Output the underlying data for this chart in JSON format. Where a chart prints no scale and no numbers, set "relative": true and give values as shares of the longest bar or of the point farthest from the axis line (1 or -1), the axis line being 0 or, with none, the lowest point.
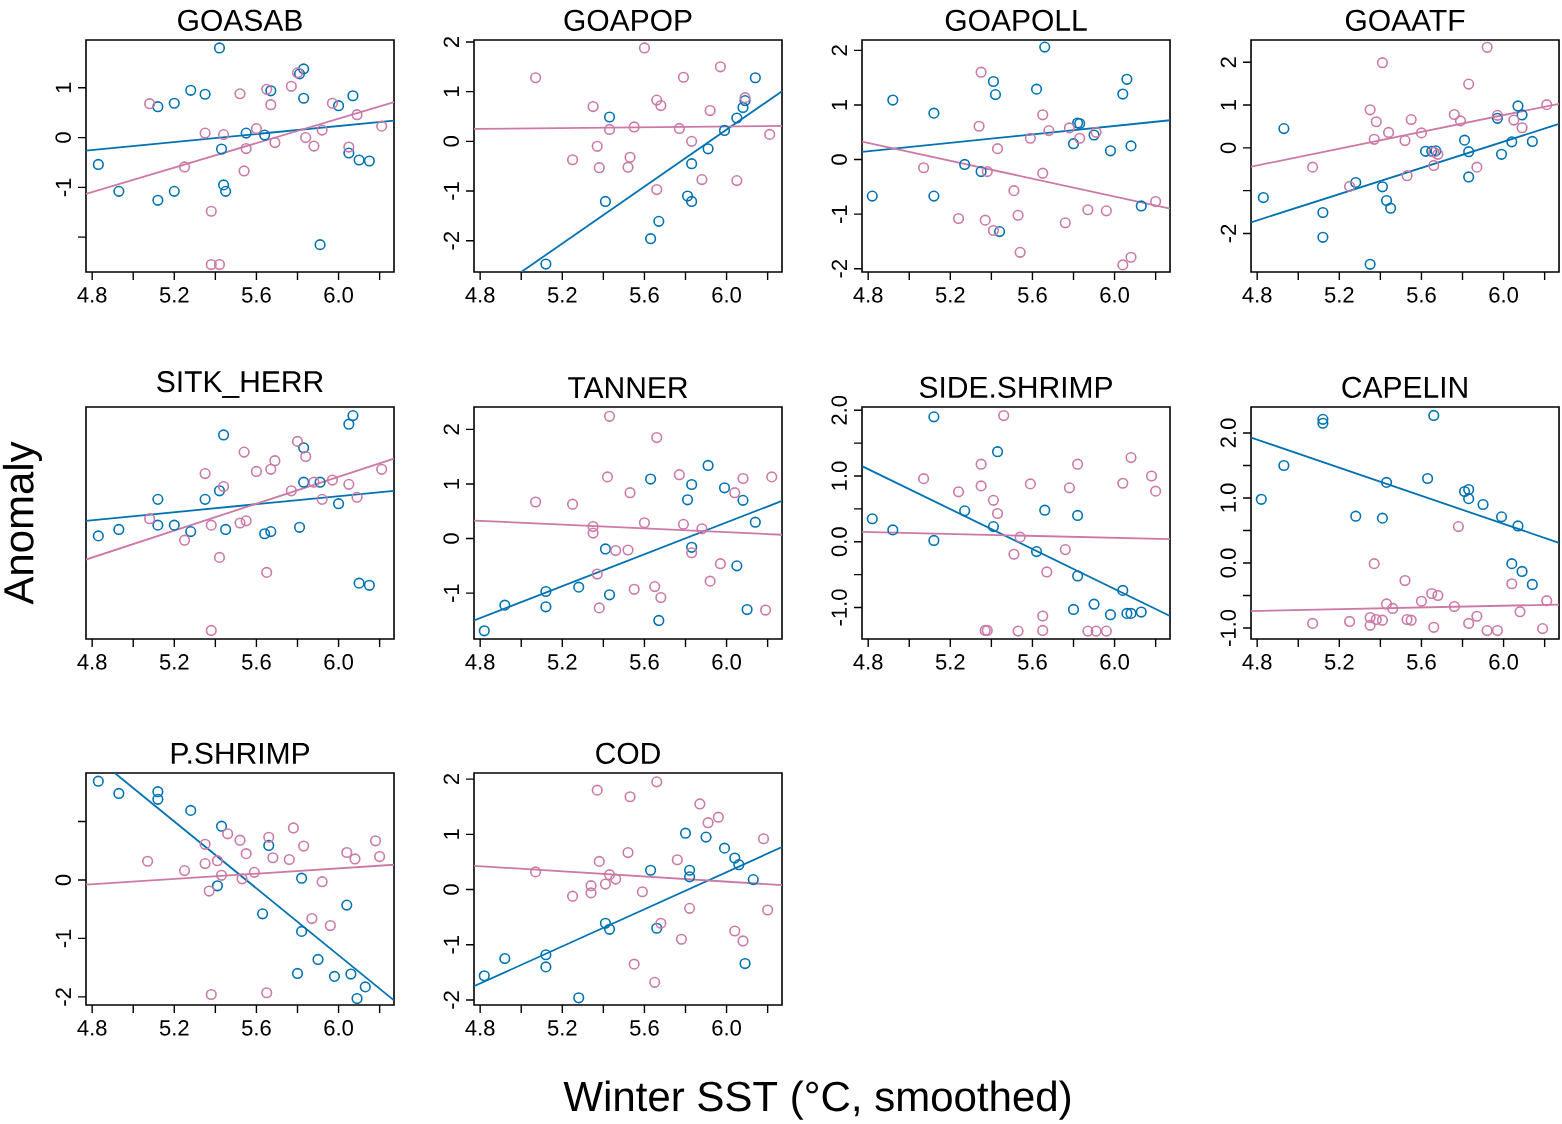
{
  "chart_data": [
    {
      "type": "scatter",
      "title": "GOASAB",
      "marker": "circle",
      "xlim": [
        4.77,
        6.27
      ],
      "ylim": [
        -2.7,
        1.96
      ],
      "xticks": [
        4.8,
        {
          "value": 5.0,
          "label": null
        },
        5.2,
        {
          "value": 5.4,
          "label": null
        },
        5.6,
        {
          "value": 5.8,
          "label": null
        },
        {
          "value": 6.0,
          "label": "6.0"
        },
        {
          "value": 6.2,
          "label": null
        }
      ],
      "yticks": [
        {
          "value": -2,
          "label": null
        },
        -1,
        0,
        1
      ],
      "series": [
        {
          "type": "scatter",
          "color": "#0072b2",
          "x": [
            4.83,
            4.93,
            5.12,
            5.12,
            5.2,
            5.2,
            5.28,
            5.35,
            5.42,
            5.43,
            5.44,
            5.45,
            5.55,
            5.64,
            5.67,
            5.81,
            5.83,
            5.83,
            5.91,
            6.0,
            6.05,
            6.07,
            6.1,
            6.15
          ],
          "values": [
            -0.54,
            -1.08,
            0.62,
            -1.26,
            0.69,
            -1.08,
            0.95,
            0.87,
            1.8,
            -0.23,
            -0.95,
            -1.08,
            0.09,
            0.05,
            0.94,
            1.28,
            1.38,
            0.79,
            -2.15,
            0.64,
            -0.31,
            0.84,
            -0.45,
            -0.47
          ]
        },
        {
          "type": "scatter",
          "color": "#cc79a7",
          "x": [
            5.08,
            5.25,
            5.35,
            5.38,
            5.38,
            5.42,
            5.44,
            5.52,
            5.54,
            5.55,
            5.6,
            5.65,
            5.67,
            5.69,
            5.77,
            5.8,
            5.84,
            5.88,
            5.92,
            5.97,
            6.05,
            6.09,
            6.21
          ],
          "values": [
            0.68,
            -0.59,
            0.09,
            -1.48,
            -2.55,
            -2.55,
            0.06,
            0.88,
            -0.67,
            -0.22,
            0.18,
            0.97,
            0.66,
            -0.1,
            1.03,
            1.3,
            0.0,
            -0.17,
            0.15,
            0.69,
            -0.19,
            0.46,
            0.23
          ]
        },
        {
          "type": "line",
          "color": "#0072b2",
          "x": [
            4.77,
            6.27
          ],
          "values": [
            -0.26,
            0.34
          ],
          "marker": "none"
        },
        {
          "type": "line",
          "color": "#cc79a7",
          "x": [
            4.77,
            6.27
          ],
          "values": [
            -1.13,
            0.71
          ],
          "marker": "none"
        }
      ]
    },
    {
      "type": "scatter",
      "title": "GOAPOP",
      "marker": "circle",
      "xlim": [
        4.77,
        6.27
      ],
      "ylim": [
        -2.63,
        2.04
      ],
      "xticks": [
        4.8,
        {
          "value": 5.0,
          "label": null
        },
        5.2,
        {
          "value": 5.4,
          "label": null
        },
        5.6,
        {
          "value": 5.8,
          "label": null
        },
        {
          "value": 6.0,
          "label": "6.0"
        },
        {
          "value": 6.2,
          "label": null
        }
      ],
      "yticks": [
        -2,
        -1,
        0,
        1,
        2
      ],
      "series": [
        {
          "type": "scatter",
          "color": "#0072b2",
          "x": [
            5.12,
            5.41,
            5.43,
            5.63,
            5.67,
            5.81,
            5.83,
            5.83,
            5.91,
            5.99,
            6.05,
            6.08,
            6.09,
            6.14
          ],
          "values": [
            -2.47,
            -1.21,
            0.49,
            -1.96,
            -1.61,
            -1.1,
            -0.45,
            -1.21,
            -0.15,
            0.22,
            0.47,
            0.68,
            0.82,
            1.28
          ]
        },
        {
          "type": "scatter",
          "color": "#cc79a7",
          "x": [
            5.07,
            5.25,
            5.35,
            5.37,
            5.38,
            5.43,
            5.52,
            5.53,
            5.55,
            5.6,
            5.66,
            5.66,
            5.68,
            5.77,
            5.79,
            5.83,
            5.88,
            5.92,
            5.97,
            6.05,
            6.09,
            6.21
          ],
          "values": [
            1.28,
            -0.37,
            0.7,
            -0.1,
            -0.53,
            0.24,
            -0.52,
            -0.32,
            0.29,
            1.88,
            -0.97,
            0.83,
            0.72,
            0.26,
            1.29,
            0.0,
            -0.77,
            0.62,
            1.5,
            -0.79,
            0.88,
            0.14
          ]
        },
        {
          "type": "line",
          "color": "#0072b2",
          "x": [
            5.0,
            6.27
          ],
          "values": [
            -2.63,
            1.01
          ],
          "marker": "none"
        },
        {
          "type": "line",
          "color": "#cc79a7",
          "x": [
            4.77,
            6.27
          ],
          "values": [
            0.25,
            0.31
          ],
          "marker": "none"
        }
      ]
    },
    {
      "type": "scatter",
      "title": "GOAPOLL",
      "marker": "circle",
      "xlim": [
        4.77,
        6.27
      ],
      "ylim": [
        -2.06,
        2.19
      ],
      "xticks": [
        4.8,
        {
          "value": 5.0,
          "label": null
        },
        5.2,
        {
          "value": 5.4,
          "label": null
        },
        5.6,
        {
          "value": 5.8,
          "label": null
        },
        {
          "value": 6.0,
          "label": "6.0"
        },
        {
          "value": 6.2,
          "label": null
        }
      ],
      "yticks": [
        -2,
        -1,
        0,
        1,
        2
      ],
      "series": [
        {
          "type": "scatter",
          "color": "#0072b2",
          "x": [
            4.82,
            4.92,
            5.12,
            5.12,
            5.27,
            5.35,
            5.41,
            5.42,
            5.44,
            5.62,
            5.66,
            5.8,
            5.82,
            5.83,
            5.9,
            5.98,
            6.04,
            6.06,
            6.08,
            6.13
          ],
          "values": [
            -0.67,
            1.09,
            0.85,
            -0.67,
            -0.09,
            -0.22,
            1.43,
            1.19,
            -1.32,
            1.29,
            2.06,
            0.29,
            0.67,
            0.66,
            0.45,
            0.16,
            1.2,
            1.47,
            0.25,
            -0.85
          ]
        },
        {
          "type": "scatter",
          "color": "#cc79a7",
          "x": [
            5.07,
            5.24,
            5.34,
            5.35,
            5.37,
            5.38,
            5.41,
            5.43,
            5.51,
            5.53,
            5.54,
            5.59,
            5.65,
            5.65,
            5.68,
            5.76,
            5.78,
            5.83,
            5.87,
            5.91,
            5.96,
            6.04,
            6.08,
            6.2
          ],
          "values": [
            -0.15,
            -1.08,
            0.61,
            1.6,
            -1.11,
            -0.22,
            -1.3,
            0.2,
            -0.57,
            -1.02,
            -1.7,
            0.39,
            0.82,
            -0.25,
            0.53,
            -1.16,
            0.58,
            0.39,
            -0.92,
            0.5,
            -0.94,
            -1.93,
            -1.79,
            -0.77
          ]
        },
        {
          "type": "line",
          "color": "#0072b2",
          "x": [
            4.77,
            6.27
          ],
          "values": [
            0.14,
            0.72
          ],
          "marker": "none"
        },
        {
          "type": "line",
          "color": "#cc79a7",
          "x": [
            4.77,
            6.27
          ],
          "values": [
            0.33,
            -0.9
          ],
          "marker": "none"
        }
      ]
    },
    {
      "type": "scatter",
      "title": "GOAATF",
      "marker": "circle",
      "xlim": [
        4.77,
        6.27
      ],
      "ylim": [
        -2.9,
        2.52
      ],
      "xticks": [
        4.8,
        {
          "value": 5.0,
          "label": null
        },
        5.2,
        {
          "value": 5.4,
          "label": null
        },
        5.6,
        {
          "value": 5.8,
          "label": null
        },
        {
          "value": 6.0,
          "label": "6.0"
        },
        {
          "value": 6.2,
          "label": null
        }
      ],
      "yticks": [
        -2,
        {
          "value": -1,
          "label": null
        },
        0,
        1,
        2
      ],
      "series": [
        {
          "type": "scatter",
          "color": "#0072b2",
          "x": [
            4.83,
            4.93,
            5.12,
            5.12,
            5.28,
            5.35,
            5.41,
            5.43,
            5.45,
            5.62,
            5.65,
            5.67,
            5.81,
            5.83,
            5.83,
            5.97,
            5.99,
            6.04,
            6.07,
            6.09,
            6.14
          ],
          "values": [
            -1.16,
            0.45,
            -1.51,
            -2.09,
            -0.81,
            -2.72,
            -0.91,
            -1.23,
            -1.41,
            -0.08,
            -0.08,
            -0.07,
            0.18,
            -0.09,
            -0.68,
            0.69,
            -0.15,
            0.14,
            0.98,
            0.77,
            0.15
          ]
        },
        {
          "type": "scatter",
          "color": "#cc79a7",
          "x": [
            5.07,
            5.25,
            5.35,
            5.37,
            5.38,
            5.41,
            5.44,
            5.52,
            5.53,
            5.55,
            5.6,
            5.66,
            5.66,
            5.68,
            5.76,
            5.79,
            5.83,
            5.87,
            5.92,
            5.97,
            6.05,
            6.09,
            6.21
          ],
          "values": [
            -0.45,
            -0.9,
            0.89,
            0.2,
            0.61,
            1.99,
            0.36,
            0.17,
            -0.65,
            0.66,
            0.35,
            -0.41,
            -0.1,
            -0.15,
            0.78,
            0.63,
            1.49,
            -0.45,
            2.35,
            0.76,
            0.65,
            0.47,
            1.01
          ]
        },
        {
          "type": "line",
          "color": "#0072b2",
          "x": [
            4.77,
            6.27
          ],
          "values": [
            -1.74,
            0.56
          ],
          "marker": "none"
        },
        {
          "type": "line",
          "color": "#cc79a7",
          "x": [
            4.77,
            6.27
          ],
          "values": [
            -0.44,
            1.03
          ],
          "marker": "none"
        }
      ]
    },
    {
      "type": "scatter",
      "title": "SITK_HERR",
      "ylabel": "Anomaly",
      "marker": "circle",
      "relative": true,
      "xlim": [
        4.77,
        6.27
      ],
      "xticks": [
        4.8,
        {
          "value": 5.0,
          "label": null
        },
        5.2,
        {
          "value": 5.4,
          "label": null
        },
        5.6,
        {
          "value": 5.8,
          "label": null
        },
        {
          "value": 6.0,
          "label": "6.0"
        },
        {
          "value": 6.2,
          "label": null
        }
      ],
      "series": [
        {
          "type": "scatter",
          "color": "#0072b2",
          "x": [
            4.83,
            4.93,
            5.12,
            5.12,
            5.2,
            5.28,
            5.35,
            5.42,
            5.44,
            5.45,
            5.64,
            5.67,
            5.81,
            5.83,
            5.83,
            5.91,
            6.0,
            6.05,
            6.07,
            6.1,
            6.15
          ],
          "values": [
            0.44,
            0.47,
            0.61,
            0.49,
            0.49,
            0.46,
            0.61,
            0.65,
            0.91,
            0.47,
            0.45,
            0.46,
            0.48,
            0.85,
            0.69,
            0.69,
            0.59,
            0.96,
            1.0,
            0.22,
            0.21
          ]
        },
        {
          "type": "scatter",
          "color": "#cc79a7",
          "x": [
            5.08,
            5.25,
            5.35,
            5.38,
            5.38,
            5.42,
            5.44,
            5.52,
            5.54,
            5.55,
            5.6,
            5.65,
            5.67,
            5.69,
            5.77,
            5.8,
            5.84,
            5.88,
            5.92,
            5.97,
            6.05,
            6.09,
            6.21
          ],
          "values": [
            0.52,
            0.42,
            0.73,
            0.49,
            0.0,
            0.34,
            0.67,
            0.5,
            0.83,
            0.51,
            0.74,
            0.27,
            0.75,
            0.79,
            0.65,
            0.88,
            0.81,
            0.69,
            0.61,
            0.7,
            0.68,
            0.62,
            0.75
          ]
        },
        {
          "type": "line",
          "color": "#0072b2",
          "x": [
            4.77,
            6.27
          ],
          "values": [
            0.51,
            0.65
          ],
          "marker": "none"
        },
        {
          "type": "line",
          "color": "#cc79a7",
          "x": [
            4.77,
            6.27
          ],
          "values": [
            0.33,
            0.8
          ],
          "marker": "none"
        }
      ]
    },
    {
      "type": "scatter",
      "title": "TANNER",
      "marker": "circle",
      "xlim": [
        4.77,
        6.27
      ],
      "ylim": [
        -1.84,
        2.41
      ],
      "xticks": [
        4.8,
        {
          "value": 5.0,
          "label": null
        },
        5.2,
        {
          "value": 5.4,
          "label": null
        },
        5.6,
        {
          "value": 5.8,
          "label": null
        },
        {
          "value": 6.0,
          "label": "6.0"
        },
        {
          "value": 6.2,
          "label": null
        }
      ],
      "yticks": [
        -1,
        0,
        1,
        2
      ],
      "series": [
        {
          "type": "scatter",
          "color": "#0072b2",
          "x": [
            4.82,
            4.92,
            5.12,
            5.12,
            5.28,
            5.41,
            5.43,
            5.63,
            5.67,
            5.81,
            5.83,
            5.83,
            5.91,
            5.99,
            6.05,
            6.08,
            6.1,
            6.14
          ],
          "values": [
            -1.69,
            -1.22,
            -0.97,
            -1.25,
            -0.89,
            -0.19,
            -1.03,
            1.09,
            -1.5,
            0.71,
            0.99,
            -0.16,
            1.34,
            0.93,
            -0.5,
            0.7,
            -1.3,
            0.3
          ]
        },
        {
          "type": "scatter",
          "color": "#cc79a7",
          "x": [
            5.07,
            5.25,
            5.35,
            5.35,
            5.37,
            5.38,
            5.42,
            5.43,
            5.46,
            5.52,
            5.53,
            5.55,
            5.6,
            5.65,
            5.66,
            5.68,
            5.77,
            5.79,
            5.83,
            5.88,
            5.92,
            5.97,
            6.04,
            6.08,
            6.19,
            6.22
          ],
          "values": [
            0.67,
            0.63,
            0.22,
            0.1,
            -0.65,
            -1.27,
            1.13,
            2.24,
            -0.22,
            -0.21,
            0.84,
            -0.93,
            0.29,
            -0.88,
            1.85,
            -1.08,
            1.17,
            0.26,
            -0.26,
            0.18,
            -0.78,
            -0.46,
            0.84,
            1.1,
            -1.31,
            1.13
          ]
        },
        {
          "type": "line",
          "color": "#0072b2",
          "x": [
            4.77,
            6.27
          ],
          "values": [
            -1.5,
            0.69
          ],
          "marker": "none"
        },
        {
          "type": "line",
          "color": "#cc79a7",
          "x": [
            4.77,
            6.27
          ],
          "values": [
            0.33,
            0.07
          ],
          "marker": "none"
        }
      ]
    },
    {
      "type": "scatter",
      "title": "SIDE.SHRIMP",
      "marker": "circle",
      "xlim": [
        4.77,
        6.27
      ],
      "ylim": [
        -1.48,
        2.05
      ],
      "xticks": [
        4.8,
        {
          "value": 5.0,
          "label": null
        },
        5.2,
        {
          "value": 5.4,
          "label": null
        },
        5.6,
        {
          "value": 5.8,
          "label": null
        },
        {
          "value": 6.0,
          "label": "6.0"
        },
        {
          "value": 6.2,
          "label": null
        }
      ],
      "yticks": [
        {
          "value": -1.0,
          "label": "-1.0"
        },
        {
          "value": -0.5,
          "label": null
        },
        {
          "value": 0.0,
          "label": "0.0"
        },
        {
          "value": 0.5,
          "label": null
        },
        {
          "value": 1.0,
          "label": "1.0"
        },
        {
          "value": 1.5,
          "label": null
        },
        {
          "value": 2.0,
          "label": "2.0"
        }
      ],
      "series": [
        {
          "type": "scatter",
          "color": "#0072b2",
          "x": [
            4.82,
            4.92,
            5.12,
            5.12,
            5.27,
            5.41,
            5.43,
            5.62,
            5.66,
            5.8,
            5.82,
            5.82,
            5.9,
            5.98,
            6.04,
            6.06,
            6.08,
            6.13
          ],
          "values": [
            0.35,
            0.18,
            0.02,
            1.9,
            0.47,
            0.23,
            1.37,
            -0.15,
            0.48,
            -1.03,
            0.4,
            -0.52,
            -0.95,
            -1.11,
            -0.74,
            -1.09,
            -1.09,
            -1.07
          ]
        },
        {
          "type": "scatter",
          "color": "#cc79a7",
          "x": [
            5.07,
            5.24,
            5.35,
            5.35,
            5.37,
            5.38,
            5.41,
            5.43,
            5.46,
            5.51,
            5.53,
            5.54,
            5.59,
            5.65,
            5.65,
            5.67,
            5.76,
            5.78,
            5.82,
            5.87,
            5.91,
            5.96,
            6.04,
            6.08,
            6.18,
            6.2
          ],
          "values": [
            0.96,
            0.76,
            0.85,
            1.18,
            -1.35,
            -1.35,
            0.63,
            0.43,
            1.92,
            -0.19,
            -1.36,
            0.07,
            0.88,
            -1.35,
            -1.13,
            -0.46,
            -0.12,
            0.82,
            1.18,
            -1.36,
            -1.36,
            -1.36,
            0.89,
            1.28,
            1.0,
            0.77
          ]
        },
        {
          "type": "line",
          "color": "#0072b2",
          "x": [
            4.77,
            6.27
          ],
          "values": [
            1.15,
            -1.13
          ],
          "marker": "none"
        },
        {
          "type": "line",
          "color": "#cc79a7",
          "x": [
            4.77,
            6.27
          ],
          "values": [
            0.15,
            0.04
          ],
          "marker": "none"
        }
      ]
    },
    {
      "type": "scatter",
      "title": "CAPELIN",
      "marker": "circle",
      "xlim": [
        4.77,
        6.27
      ],
      "ylim": [
        -1.17,
        2.4
      ],
      "xticks": [
        4.8,
        {
          "value": 5.0,
          "label": null
        },
        5.2,
        {
          "value": 5.4,
          "label": null
        },
        5.6,
        {
          "value": 5.8,
          "label": null
        },
        {
          "value": 6.0,
          "label": "6.0"
        },
        {
          "value": 6.2,
          "label": null
        }
      ],
      "yticks": [
        {
          "value": -1.0,
          "label": "-1.0"
        },
        {
          "value": -0.5,
          "label": null
        },
        {
          "value": 0.0,
          "label": "0.0"
        },
        {
          "value": 0.5,
          "label": null
        },
        {
          "value": 1.0,
          "label": "1.0"
        },
        {
          "value": 1.5,
          "label": null
        },
        {
          "value": 2.0,
          "label": "2.0"
        }
      ],
      "series": [
        {
          "type": "scatter",
          "color": "#0072b2",
          "x": [
            4.82,
            4.93,
            5.12,
            5.12,
            5.28,
            5.41,
            5.43,
            5.63,
            5.66,
            5.81,
            5.83,
            5.83,
            5.9,
            5.99,
            6.07,
            6.04,
            6.09,
            6.14
          ],
          "values": [
            0.98,
            1.5,
            2.21,
            2.15,
            0.72,
            0.69,
            1.24,
            1.3,
            2.27,
            1.1,
            1.13,
            0.99,
            0.9,
            0.71,
            0.57,
            -0.01,
            -0.13,
            -0.33
          ]
        },
        {
          "type": "scatter",
          "color": "#cc79a7",
          "x": [
            5.07,
            5.25,
            5.35,
            5.35,
            5.37,
            5.38,
            5.41,
            5.43,
            5.46,
            5.52,
            5.53,
            5.55,
            5.6,
            5.65,
            5.66,
            5.68,
            5.76,
            5.78,
            5.83,
            5.87,
            5.92,
            5.97,
            6.04,
            6.08,
            6.19,
            6.21
          ],
          "values": [
            -0.93,
            -0.9,
            -0.84,
            -0.96,
            -0.01,
            -0.87,
            -0.88,
            -0.63,
            -0.7,
            -0.27,
            -0.87,
            -0.88,
            -0.59,
            -0.47,
            -0.99,
            -0.5,
            -0.67,
            0.56,
            -0.93,
            -0.82,
            -1.04,
            -1.04,
            -0.32,
            -0.75,
            -1.01,
            -0.58
          ]
        },
        {
          "type": "line",
          "color": "#0072b2",
          "x": [
            4.77,
            6.27
          ],
          "values": [
            1.93,
            0.31
          ],
          "marker": "none"
        },
        {
          "type": "line",
          "color": "#cc79a7",
          "x": [
            4.77,
            6.27
          ],
          "values": [
            -0.74,
            -0.64
          ],
          "marker": "none"
        }
      ]
    },
    {
      "type": "scatter",
      "title": "P.SHRIMP",
      "marker": "circle",
      "xlim": [
        4.77,
        6.27
      ],
      "ylim": [
        -2.14,
        1.83
      ],
      "xticks": [
        4.8,
        {
          "value": 5.0,
          "label": null
        },
        5.2,
        {
          "value": 5.4,
          "label": null
        },
        5.6,
        {
          "value": 5.8,
          "label": null
        },
        {
          "value": 6.0,
          "label": "6.0"
        },
        {
          "value": 6.2,
          "label": null
        }
      ],
      "yticks": [
        -2,
        -1,
        0,
        {
          "value": 1,
          "label": null
        }
      ],
      "series": [
        {
          "type": "scatter",
          "color": "#0072b2",
          "x": [
            4.83,
            4.93,
            5.12,
            5.12,
            5.28,
            5.41,
            5.43,
            5.63,
            5.66,
            5.8,
            5.82,
            5.82,
            5.9,
            5.98,
            6.04,
            6.06,
            6.09,
            6.13
          ],
          "values": [
            1.69,
            1.48,
            1.51,
            1.38,
            1.19,
            -0.1,
            0.92,
            -0.58,
            0.59,
            -1.6,
            0.03,
            -0.88,
            -1.36,
            -1.65,
            -0.43,
            -1.61,
            -2.03,
            -1.83
          ]
        },
        {
          "type": "scatter",
          "color": "#cc79a7",
          "x": [
            5.07,
            5.25,
            5.35,
            5.35,
            5.37,
            5.38,
            5.41,
            5.43,
            5.46,
            5.52,
            5.53,
            5.55,
            5.59,
            5.65,
            5.66,
            5.68,
            5.76,
            5.78,
            5.83,
            5.87,
            5.92,
            5.96,
            6.04,
            6.08,
            6.18,
            6.2
          ],
          "values": [
            0.32,
            0.16,
            0.61,
            0.28,
            -0.19,
            -1.96,
            0.33,
            0.08,
            0.79,
            0.68,
            0.02,
            0.45,
            0.13,
            -1.93,
            0.73,
            0.38,
            0.35,
            0.89,
            0.58,
            -0.66,
            -0.03,
            -0.78,
            0.47,
            0.36,
            0.67,
            0.4
          ]
        },
        {
          "type": "line",
          "color": "#0072b2",
          "x": [
            4.91,
            6.27
          ],
          "values": [
            1.83,
            -2.06
          ],
          "marker": "none"
        },
        {
          "type": "line",
          "color": "#cc79a7",
          "x": [
            4.77,
            6.27
          ],
          "values": [
            -0.08,
            0.26
          ],
          "marker": "none"
        }
      ]
    },
    {
      "type": "scatter",
      "title": "COD",
      "xlabel": "Winter SST (°C, smoothed)",
      "marker": "circle",
      "xlim": [
        4.77,
        6.27
      ],
      "ylim": [
        -2.09,
        2.11
      ],
      "xticks": [
        4.8,
        {
          "value": 5.0,
          "label": null
        },
        5.2,
        {
          "value": 5.4,
          "label": null
        },
        5.6,
        {
          "value": 5.8,
          "label": null
        },
        {
          "value": 6.0,
          "label": "6.0"
        },
        {
          "value": 6.2,
          "label": null
        }
      ],
      "yticks": [
        -2,
        -1,
        0,
        1,
        2
      ],
      "series": [
        {
          "type": "scatter",
          "color": "#0072b2",
          "x": [
            4.82,
            4.92,
            5.12,
            5.12,
            5.28,
            5.41,
            5.43,
            5.63,
            5.66,
            5.8,
            5.82,
            5.82,
            5.9,
            5.99,
            6.04,
            6.06,
            6.09,
            6.13
          ],
          "values": [
            -1.56,
            -1.25,
            -1.18,
            -1.4,
            -1.96,
            -0.61,
            -0.72,
            0.35,
            -0.7,
            1.02,
            0.35,
            0.23,
            0.95,
            0.75,
            0.57,
            0.45,
            -1.34,
            0.18
          ]
        },
        {
          "type": "scatter",
          "color": "#cc79a7",
          "x": [
            5.07,
            5.25,
            5.34,
            5.34,
            5.37,
            5.38,
            5.41,
            5.43,
            5.46,
            5.52,
            5.53,
            5.55,
            5.59,
            5.65,
            5.66,
            5.68,
            5.76,
            5.78,
            5.82,
            5.87,
            5.91,
            5.96,
            6.04,
            6.08,
            6.18,
            6.2
          ],
          "values": [
            0.32,
            -0.12,
            0.07,
            -0.06,
            1.8,
            0.51,
            0.1,
            0.27,
            0.19,
            0.67,
            1.68,
            -1.35,
            -0.04,
            -1.68,
            1.95,
            -0.61,
            0.54,
            -0.9,
            -0.34,
            1.55,
            1.21,
            1.31,
            -0.75,
            -0.93,
            0.92,
            -0.37
          ]
        },
        {
          "type": "line",
          "color": "#0072b2",
          "x": [
            4.77,
            6.27
          ],
          "values": [
            -1.75,
            0.77
          ],
          "marker": "none"
        },
        {
          "type": "line",
          "color": "#cc79a7",
          "x": [
            4.77,
            6.27
          ],
          "values": [
            0.43,
            0.08
          ],
          "marker": "none"
        }
      ]
    }
  ]
}
